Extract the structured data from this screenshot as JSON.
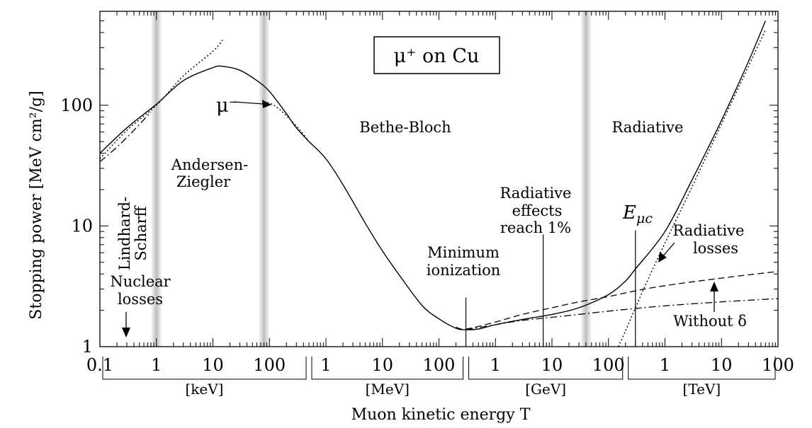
{
  "chart_data": {
    "type": "line",
    "title": "μ⁺ on Cu",
    "xlabel": "Muon kinetic energy  T",
    "ylabel": "Stopping power [MeV cm²/g]",
    "y_scale": "log",
    "ylim": [
      1,
      600
    ],
    "yticks": [
      {
        "value": 1,
        "label": "1"
      },
      {
        "value": 10,
        "label": "10"
      },
      {
        "value": 100,
        "label": "100"
      }
    ],
    "x_scale": "log",
    "x_unit": "keV",
    "xlim_keV": [
      0.1,
      100000000000
    ],
    "x_ticks": [
      {
        "value_keV": 0.1,
        "label": "0.1"
      },
      {
        "value_keV": 1,
        "label": "1"
      },
      {
        "value_keV": 10,
        "label": "10"
      },
      {
        "value_keV": 100,
        "label": "100"
      },
      {
        "value_keV": 1000,
        "label": "1"
      },
      {
        "value_keV": 10000,
        "label": "10"
      },
      {
        "value_keV": 100000,
        "label": "100"
      },
      {
        "value_keV": 1000000,
        "label": "1"
      },
      {
        "value_keV": 10000000,
        "label": "10"
      },
      {
        "value_keV": 100000000,
        "label": "100"
      },
      {
        "value_keV": 1000000000,
        "label": "1"
      },
      {
        "value_keV": 10000000000,
        "label": "10"
      },
      {
        "value_keV": 100000000000,
        "label": "100"
      }
    ],
    "unit_groups": [
      {
        "label": "[keV]",
        "from_keV": 0.1,
        "to_keV": 500
      },
      {
        "label": "[MeV]",
        "from_keV": 500,
        "to_keV": 300000
      },
      {
        "label": "[GeV]",
        "from_keV": 300000,
        "to_keV": 200000000
      },
      {
        "label": "[TeV]",
        "from_keV": 200000000,
        "to_keV": 100000000000
      }
    ],
    "shaded_bands_keV": [
      1,
      80,
      40000000
    ],
    "series": [
      {
        "role": "total",
        "segments": [
          [
            [
              0.1,
              40
            ],
            [
              0.3,
              65
            ],
            [
              1,
              102
            ],
            [
              3,
              160
            ],
            [
              10,
              205
            ],
            [
              15,
              210
            ],
            [
              30,
              195
            ],
            [
              60,
              160
            ],
            [
              100,
              130
            ],
            [
              200,
              85
            ],
            [
              300,
              65
            ],
            [
              500,
              50
            ]
          ],
          [
            [
              500,
              50
            ],
            [
              1000,
              36
            ],
            [
              2000,
              22
            ],
            [
              5000,
              10.5
            ],
            [
              10000,
              6.2
            ],
            [
              20000,
              3.9
            ],
            [
              50000,
              2.2
            ],
            [
              100000,
              1.7
            ],
            [
              200000,
              1.42
            ],
            [
              300000,
              1.38
            ],
            [
              500000,
              1.4
            ],
            [
              1000000,
              1.52
            ],
            [
              3000000,
              1.68
            ],
            [
              10000000,
              1.85
            ],
            [
              30000000,
              2.1
            ],
            [
              100000000,
              2.7
            ],
            [
              200000000,
              3.5
            ],
            [
              300000000,
              4.4
            ],
            [
              1000000000,
              9
            ],
            [
              3000000000,
              24
            ],
            [
              10000000000,
              75
            ],
            [
              30000000000,
              230
            ],
            [
              60000000000,
              500
            ]
          ]
        ]
      },
      {
        "role": "lindhard-low-energy",
        "segments": [
          [
            [
              0.1,
              36
            ],
            [
              0.3,
              62
            ],
            [
              1,
              100
            ],
            [
              3,
              175
            ],
            [
              10,
              280
            ],
            [
              15,
              350
            ]
          ]
        ]
      },
      {
        "role": "nuclear-losses",
        "segments": [
          [
            [
              0.1,
              34
            ],
            [
              0.2,
              45
            ],
            [
              0.4,
              62
            ],
            [
              0.8,
              88
            ]
          ]
        ]
      },
      {
        "role": "mu-minus",
        "segments": [
          [
            [
              80,
              107
            ],
            [
              120,
              100
            ],
            [
              200,
              82
            ],
            [
              350,
              62
            ],
            [
              500,
              50
            ]
          ]
        ]
      },
      {
        "role": "total-no-radiative",
        "segments": [
          [
            [
              200000,
              1.45
            ],
            [
              300000,
              1.4
            ],
            [
              1000000,
              1.6
            ],
            [
              3000000,
              1.85
            ],
            [
              10000000,
              2.1
            ],
            [
              30000000,
              2.35
            ],
            [
              100000000,
              2.6
            ],
            [
              300000000,
              2.9
            ],
            [
              1000000000,
              3.2
            ],
            [
              10000000000,
              3.7
            ],
            [
              100000000000,
              4.2
            ]
          ]
        ]
      },
      {
        "role": "without-delta",
        "segments": [
          [
            [
              300000,
              1.38
            ],
            [
              1000000,
              1.52
            ],
            [
              3000000,
              1.65
            ],
            [
              10000000,
              1.75
            ],
            [
              30000000,
              1.85
            ],
            [
              100000000,
              1.97
            ],
            [
              300000000,
              2.07
            ],
            [
              1000000000,
              2.18
            ],
            [
              10000000000,
              2.35
            ],
            [
              100000000000,
              2.5
            ]
          ]
        ]
      },
      {
        "role": "radiative-losses",
        "segments": [
          [
            [
              150000000,
              1
            ],
            [
              200000000,
              1.35
            ],
            [
              300000000,
              2.1
            ],
            [
              500000000,
              3.6
            ],
            [
              1000000000,
              7.2
            ],
            [
              3000000000,
              21
            ],
            [
              10000000000,
              70
            ],
            [
              30000000000,
              210
            ],
            [
              60000000000,
              420
            ]
          ]
        ]
      }
    ],
    "markers": [
      {
        "name": "minimum-ionization",
        "x_keV": 300000,
        "y_from": 1,
        "y_to": 2.55
      },
      {
        "name": "radiative-1pct",
        "x_keV": 7000000,
        "y_from": 1,
        "y_to": 8.5
      },
      {
        "name": "e-muc",
        "x_keV": 300000000,
        "y_from": 1,
        "y_to": 9.2
      }
    ],
    "annotations": {
      "lindhard": [
        "Lindhard-",
        "Scharff"
      ],
      "andersen": [
        "Andersen-",
        "Ziegler"
      ],
      "bethe": "Bethe-Bloch",
      "radiative": "Radiative",
      "mu_minus": "μ⁻",
      "min_ion": [
        "Minimum",
        "ionization"
      ],
      "rad_effects": [
        "Radiative",
        "effects",
        "reach 1%"
      ],
      "nuclear": [
        "Nuclear",
        "losses"
      ],
      "e_muc_main": "E",
      "e_muc_sub": "μc",
      "rad_losses": [
        "Radiative",
        "losses"
      ],
      "without_delta": "Without δ"
    }
  }
}
